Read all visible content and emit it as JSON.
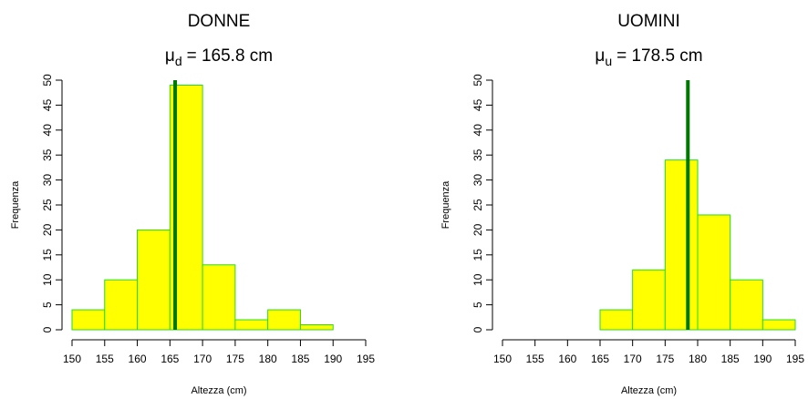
{
  "chart_data": [
    {
      "type": "histogram",
      "title": "DONNE",
      "mean_symbol": "μ",
      "mean_subscript": "d",
      "mean_label": "= 165.8 cm",
      "mean": 165.8,
      "x_label": "Altezza (cm)",
      "y_label": "Frequenza",
      "bins": [
        150,
        155,
        160,
        165,
        170,
        175,
        180,
        185,
        190,
        195
      ],
      "values": [
        4,
        10,
        20,
        49,
        13,
        2,
        4,
        1,
        0
      ],
      "color": "#ffff00",
      "edge_color": "#22dd22",
      "mean_color": "#007700",
      "xlim": [
        150,
        195
      ],
      "xticks": [
        150,
        155,
        160,
        165,
        170,
        175,
        180,
        185,
        190,
        195
      ],
      "ylim": [
        0,
        50
      ],
      "yticks": [
        0,
        5,
        10,
        15,
        20,
        25,
        30,
        35,
        40,
        45,
        50
      ]
    },
    {
      "type": "histogram",
      "title": "UOMINI",
      "mean_symbol": "μ",
      "mean_subscript": "u",
      "mean_label": "= 178.5 cm",
      "mean": 178.5,
      "x_label": "Altezza (cm)",
      "y_label": "Frequenza",
      "bins": [
        150,
        155,
        160,
        165,
        170,
        175,
        180,
        185,
        190,
        195
      ],
      "values": [
        0,
        0,
        0,
        4,
        12,
        34,
        23,
        10,
        2
      ],
      "color": "#ffff00",
      "edge_color": "#22dd22",
      "mean_color": "#007700",
      "xlim": [
        150,
        195
      ],
      "xticks": [
        150,
        155,
        160,
        165,
        170,
        175,
        180,
        185,
        190,
        195
      ],
      "ylim": [
        0,
        50
      ],
      "yticks": [
        0,
        5,
        10,
        15,
        20,
        25,
        30,
        35,
        40,
        45,
        50
      ]
    }
  ]
}
